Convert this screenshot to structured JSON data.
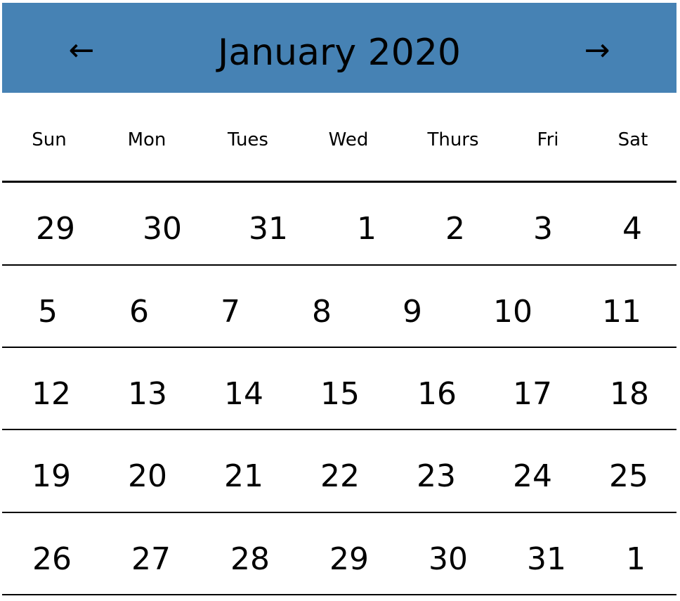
{
  "header": {
    "title": "January 2020",
    "prev_label": "←",
    "next_label": "→",
    "background_color": "#4682b4"
  },
  "weekdays": [
    "Sun",
    "Mon",
    "Tues",
    "Wed",
    "Thurs",
    "Fri",
    "Sat"
  ],
  "weeks": [
    [
      "29",
      "30",
      "31",
      "1",
      "2",
      "3",
      "4"
    ],
    [
      "5",
      "6",
      "7",
      "8",
      "9",
      "10",
      "11"
    ],
    [
      "12",
      "13",
      "14",
      "15",
      "16",
      "17",
      "18"
    ],
    [
      "19",
      "20",
      "21",
      "22",
      "23",
      "24",
      "25"
    ],
    [
      "26",
      "27",
      "28",
      "29",
      "30",
      "31",
      "1"
    ]
  ]
}
